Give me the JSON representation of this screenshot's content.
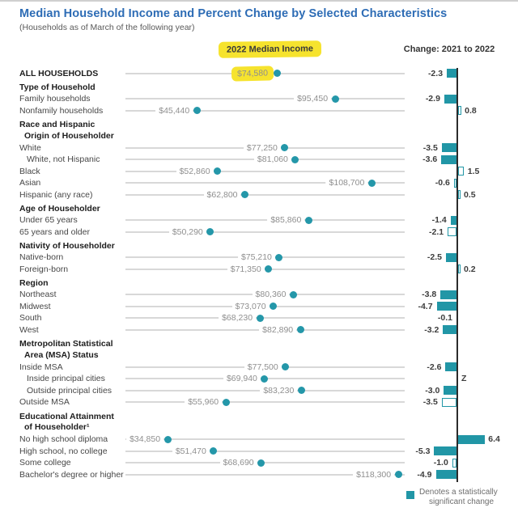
{
  "title": "Median Household Income and Percent Change by Selected Characteristics",
  "subtitle": "(Households as of March of the following year)",
  "column_headers": {
    "income": "2022 Median Income",
    "change": "Change: 2021 to 2022"
  },
  "legend": {
    "line1": "Denotes a statistically",
    "line2": "significant change"
  },
  "colors": {
    "teal": "#2196a6",
    "dot_teal": "#2497a9",
    "highlight_yellow": "#f6e32e",
    "title_blue": "#2d6cb5",
    "line_gray": "#d8d8d8",
    "axis_black": "#2b2b2b"
  },
  "chart_data": {
    "type": "scatter",
    "subtype": "dot-plot-with-change-bar-chart",
    "title": "Median Household Income and Percent Change by Selected Characteristics",
    "income_column_header": "2022 Median Income",
    "change_column_header": "Change: 2021 to 2022",
    "legend_position": "bottom-right",
    "grid": false,
    "rows": [
      {
        "type": "data",
        "label": "ALL HOUSEHOLDS",
        "bold": true,
        "indent": 0,
        "income": 74580,
        "income_label": "$74,580",
        "highlight": true,
        "change": -2.3,
        "change_label": "-2.3",
        "significant": true
      },
      {
        "type": "section",
        "lines": [
          "Type of Household"
        ]
      },
      {
        "type": "data",
        "label": "Family households",
        "indent": 0,
        "income": 95450,
        "income_label": "$95,450",
        "change": -2.9,
        "change_label": "-2.9",
        "significant": true
      },
      {
        "type": "data",
        "label": "Nonfamily households",
        "indent": 0,
        "income": 45440,
        "income_label": "$45,440",
        "change": 0.8,
        "change_label": "0.8",
        "significant": false
      },
      {
        "type": "section",
        "lines": [
          "Race and Hispanic",
          "Origin of Householder"
        ]
      },
      {
        "type": "data",
        "label": "White",
        "indent": 0,
        "income": 77250,
        "income_label": "$77,250",
        "change": -3.5,
        "change_label": "-3.5",
        "significant": true
      },
      {
        "type": "data",
        "label": "White, not Hispanic",
        "indent": 1,
        "income": 81060,
        "income_label": "$81,060",
        "change": -3.6,
        "change_label": "-3.6",
        "significant": true
      },
      {
        "type": "data",
        "label": "Black",
        "indent": 0,
        "income": 52860,
        "income_label": "$52,860",
        "change": 1.5,
        "change_label": "1.5",
        "significant": false
      },
      {
        "type": "data",
        "label": "Asian",
        "indent": 0,
        "income": 108700,
        "income_label": "$108,700",
        "change": -0.6,
        "change_label": "-0.6",
        "significant": false
      },
      {
        "type": "data",
        "label": "Hispanic (any race)",
        "indent": 0,
        "income": 62800,
        "income_label": "$62,800",
        "change": 0.5,
        "change_label": "0.5",
        "significant": false
      },
      {
        "type": "section",
        "lines": [
          "Age of Householder"
        ]
      },
      {
        "type": "data",
        "label": "Under 65 years",
        "indent": 0,
        "income": 85860,
        "income_label": "$85,860",
        "change": -1.4,
        "change_label": "-1.4",
        "significant": true
      },
      {
        "type": "data",
        "label": "65 years and older",
        "indent": 0,
        "income": 50290,
        "income_label": "$50,290",
        "change": -2.1,
        "change_label": "-2.1",
        "significant": false
      },
      {
        "type": "section",
        "lines": [
          "Nativity of Householder"
        ]
      },
      {
        "type": "data",
        "label": "Native-born",
        "indent": 0,
        "income": 75210,
        "income_label": "$75,210",
        "change": -2.5,
        "change_label": "-2.5",
        "significant": true
      },
      {
        "type": "data",
        "label": "Foreign-born",
        "indent": 0,
        "income": 71350,
        "income_label": "$71,350",
        "change": 0.2,
        "change_label": "0.2",
        "significant": false
      },
      {
        "type": "section",
        "lines": [
          "Region"
        ]
      },
      {
        "type": "data",
        "label": "Northeast",
        "indent": 0,
        "income": 80360,
        "income_label": "$80,360",
        "change": -3.8,
        "change_label": "-3.8",
        "significant": true
      },
      {
        "type": "data",
        "label": "Midwest",
        "indent": 0,
        "income": 73070,
        "income_label": "$73,070",
        "change": -4.7,
        "change_label": "-4.7",
        "significant": true
      },
      {
        "type": "data",
        "label": "South",
        "indent": 0,
        "income": 68230,
        "income_label": "$68,230",
        "change": -0.1,
        "change_label": "-0.1",
        "significant": false,
        "no_bar": true
      },
      {
        "type": "data",
        "label": "West",
        "indent": 0,
        "income": 82890,
        "income_label": "$82,890",
        "change": -3.2,
        "change_label": "-3.2",
        "significant": true
      },
      {
        "type": "section",
        "lines": [
          "Metropolitan Statistical",
          "Area (MSA) Status"
        ]
      },
      {
        "type": "data",
        "label": "Inside MSA",
        "indent": 0,
        "income": 77500,
        "income_label": "$77,500",
        "change": -2.6,
        "change_label": "-2.6",
        "significant": true
      },
      {
        "type": "data",
        "label": "Inside principal cities",
        "indent": 1,
        "income": 69940,
        "income_label": "$69,940",
        "change": null,
        "change_label": "Z",
        "significant": false,
        "no_bar": true
      },
      {
        "type": "data",
        "label": "Outside principal cities",
        "indent": 1,
        "income": 83230,
        "income_label": "$83,230",
        "change": -3.0,
        "change_label": "-3.0",
        "significant": true
      },
      {
        "type": "data",
        "label": "Outside MSA",
        "indent": 0,
        "income": 55960,
        "income_label": "$55,960",
        "change": -3.5,
        "change_label": "-3.5",
        "significant": false
      },
      {
        "type": "section",
        "lines": [
          "Educational Attainment",
          "of Householder¹"
        ]
      },
      {
        "type": "data",
        "label": "No high school diploma",
        "indent": 0,
        "income": 34850,
        "income_label": "$34,850",
        "change": 6.4,
        "change_label": "6.4",
        "significant": true
      },
      {
        "type": "data",
        "label": "High school, no college",
        "indent": 0,
        "income": 51470,
        "income_label": "$51,470",
        "change": -5.3,
        "change_label": "-5.3",
        "significant": true
      },
      {
        "type": "data",
        "label": "Some college",
        "indent": 0,
        "income": 68690,
        "income_label": "$68,690",
        "change": -1.0,
        "change_label": "-1.0",
        "significant": false
      },
      {
        "type": "data",
        "label": "Bachelor's degree or higher",
        "indent": 0,
        "income": 118300,
        "income_label": "$118,300",
        "change": -4.9,
        "change_label": "-4.9",
        "significant": true
      }
    ],
    "legend": {
      "swatch": "filled-teal-square",
      "text": "Denotes a statistically significant change"
    }
  }
}
